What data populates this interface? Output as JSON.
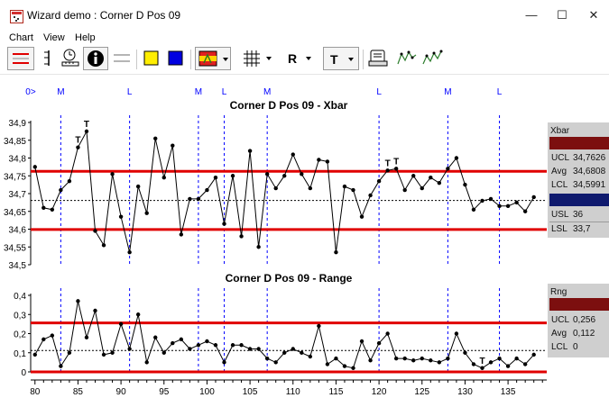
{
  "window": {
    "title": "Wizard demo : Corner D Pos 09",
    "minimize_glyph": "—",
    "maximize_glyph": "☐",
    "close_glyph": "✕"
  },
  "menu": [
    "Chart",
    "View",
    "Help"
  ],
  "toolbar": {
    "icons": [
      "limit-lines-icon",
      "range-bar-icon",
      "clock-ruler-icon",
      "info-icon",
      "flat-lines-icon",
      "yellow-square-icon",
      "blue-square-icon",
      "flag-icon",
      "grid-icon",
      "scroll-icon",
      "run-chart-icon",
      "run-chart-2-icon"
    ],
    "range_label": "R",
    "text_label": "T",
    "colors": {
      "yellow": "#ffee00",
      "blue": "#0000e0",
      "flag_red": "#e02020",
      "flag_yellow": "#ffd400"
    }
  },
  "markers": [
    {
      "label": "0>",
      "x": 79.5
    },
    {
      "label": "M",
      "x": 83
    },
    {
      "label": "L",
      "x": 91
    },
    {
      "label": "M",
      "x": 99
    },
    {
      "label": "L",
      "x": 102
    },
    {
      "label": "M",
      "x": 107
    },
    {
      "label": "L",
      "x": 120
    },
    {
      "label": "M",
      "x": 128
    },
    {
      "label": "L",
      "x": 134
    }
  ],
  "chart_data": [
    {
      "type": "line",
      "title": "Corner D Pos 09  - Xbar",
      "ylim": [
        34.5,
        34.9
      ],
      "yticks": [
        "34,9",
        "34,85",
        "34,8",
        "34,75",
        "34,7",
        "34,65",
        "34,6",
        "34,55",
        "34,5"
      ],
      "ucl": 34.7626,
      "avg": 34.6808,
      "lcl": 34.5991,
      "x": [
        80,
        81,
        82,
        83,
        84,
        85,
        86,
        87,
        88,
        89,
        90,
        91,
        92,
        93,
        94,
        95,
        96,
        97,
        98,
        99,
        100,
        101,
        102,
        103,
        104,
        105,
        106,
        107,
        108,
        109,
        110,
        111,
        112,
        113,
        114,
        115,
        116,
        117,
        118,
        119,
        120,
        121,
        122,
        123,
        124,
        125,
        126,
        127,
        128,
        129,
        130,
        131,
        132,
        133,
        134,
        135,
        136,
        137,
        138
      ],
      "values": [
        34.775,
        34.66,
        34.655,
        34.71,
        34.735,
        34.83,
        34.875,
        34.595,
        34.555,
        34.755,
        34.635,
        34.535,
        34.72,
        34.645,
        34.855,
        34.745,
        34.835,
        34.585,
        34.685,
        34.685,
        34.71,
        34.745,
        34.615,
        34.75,
        34.58,
        34.82,
        34.55,
        34.755,
        34.715,
        34.75,
        34.81,
        34.755,
        34.715,
        34.795,
        34.79,
        34.535,
        34.72,
        34.71,
        34.635,
        34.695,
        34.735,
        34.765,
        34.77,
        34.71,
        34.75,
        34.715,
        34.745,
        34.73,
        34.77,
        34.8,
        34.725,
        34.655,
        34.68,
        34.685,
        34.665,
        34.665,
        34.675,
        34.65,
        34.69
      ],
      "annotations": [
        {
          "text": "T",
          "x": 85,
          "y": 34.83
        },
        {
          "text": "T",
          "x": 86,
          "y": 34.875
        },
        {
          "text": "T",
          "x": 121,
          "y": 34.765
        },
        {
          "text": "T",
          "x": 122,
          "y": 34.77
        }
      ]
    },
    {
      "type": "line",
      "title": "Corner D Pos 09  - Range",
      "ylim": [
        0,
        0.4
      ],
      "yticks": [
        "0,4",
        "0,3",
        "0,2",
        "0,1",
        "0"
      ],
      "ucl": 0.256,
      "avg": 0.112,
      "lcl": 0,
      "x": [
        80,
        81,
        82,
        83,
        84,
        85,
        86,
        87,
        88,
        89,
        90,
        91,
        92,
        93,
        94,
        95,
        96,
        97,
        98,
        99,
        100,
        101,
        102,
        103,
        104,
        105,
        106,
        107,
        108,
        109,
        110,
        111,
        112,
        113,
        114,
        115,
        116,
        117,
        118,
        119,
        120,
        121,
        122,
        123,
        124,
        125,
        126,
        127,
        128,
        129,
        130,
        131,
        132,
        133,
        134,
        135,
        136,
        137,
        138
      ],
      "values": [
        0.09,
        0.17,
        0.19,
        0.03,
        0.1,
        0.37,
        0.18,
        0.32,
        0.09,
        0.1,
        0.25,
        0.12,
        0.3,
        0.05,
        0.18,
        0.1,
        0.15,
        0.17,
        0.12,
        0.14,
        0.16,
        0.14,
        0.05,
        0.14,
        0.14,
        0.12,
        0.12,
        0.07,
        0.05,
        0.1,
        0.12,
        0.1,
        0.08,
        0.24,
        0.04,
        0.07,
        0.03,
        0.02,
        0.16,
        0.06,
        0.15,
        0.2,
        0.07,
        0.07,
        0.06,
        0.07,
        0.06,
        0.05,
        0.07,
        0.2,
        0.1,
        0.04,
        0.02,
        0.05,
        0.07,
        0.03,
        0.07,
        0.04,
        0.09
      ],
      "annotations": [
        {
          "text": "T",
          "x": 132,
          "y": 0.02
        }
      ]
    }
  ],
  "xaxis": {
    "ticks": [
      "80",
      "85",
      "90",
      "95",
      "100",
      "105",
      "110",
      "115",
      "120",
      "125",
      "130",
      "135"
    ],
    "xlim": [
      79.5,
      139.5
    ]
  },
  "xbar_panel": {
    "title": "Xbar",
    "ucl_label": "UCL",
    "ucl": "34,7626",
    "avg_label": "Avg",
    "avg": "34,6808",
    "lcl_label": "LCL",
    "lcl": "34,5991",
    "usl_label": "USL",
    "usl": "36",
    "lsl_label": "LSL",
    "lsl": "33,7"
  },
  "range_panel": {
    "title": "Rng",
    "ucl_label": "UCL",
    "ucl": "0,256",
    "avg_label": "Avg",
    "avg": "0,112",
    "lcl_label": "LCL",
    "lcl": "0"
  },
  "colors": {
    "limit_red": "#e00000",
    "marker_blue": "#0000ff",
    "series": "#000000",
    "panel_gray": "#cfcfcf",
    "panel_dark_red": "#7c0f0f",
    "panel_dark_blue": "#0f1a6e"
  }
}
